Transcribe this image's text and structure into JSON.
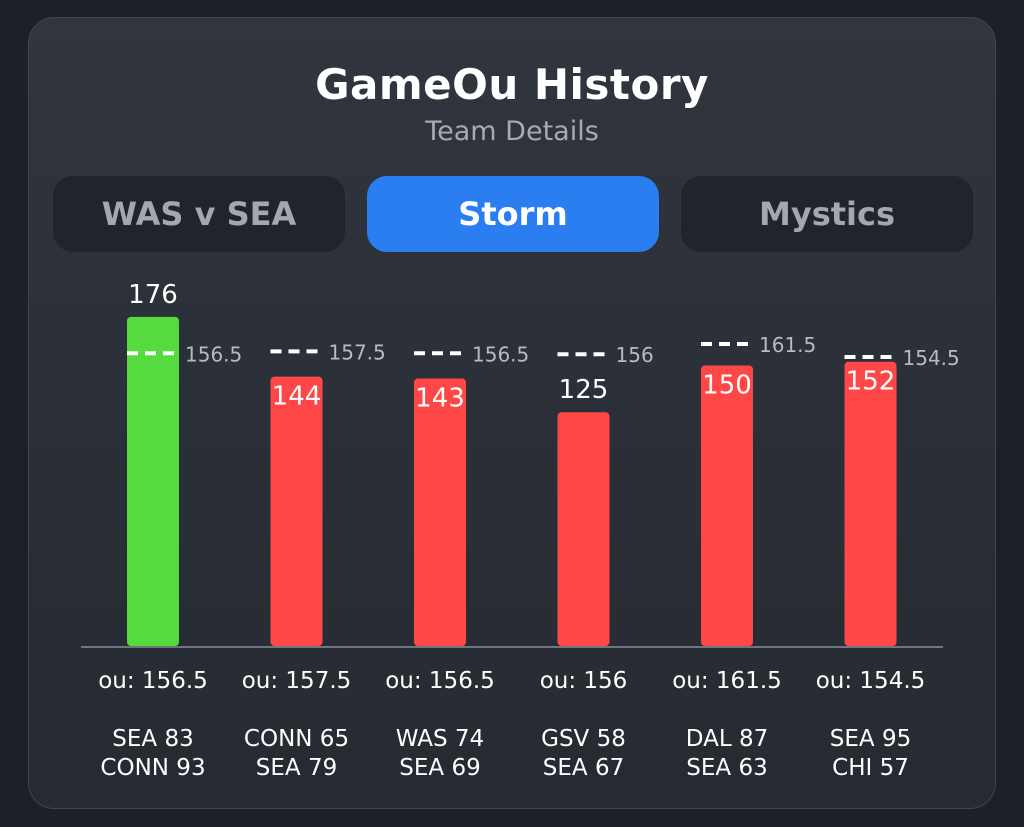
{
  "header": {
    "title": "GameOu History",
    "subtitle": "Team Details"
  },
  "tabs": [
    {
      "label": "WAS v SEA",
      "active": false
    },
    {
      "label": "Storm",
      "active": true
    },
    {
      "label": "Mystics",
      "active": false
    }
  ],
  "colors": {
    "over": "#55db3e",
    "under": "#ff4747",
    "line": "#ffffff",
    "axis": "#6f7682"
  },
  "chart_data": {
    "type": "bar",
    "title": "GameOu History",
    "ylim": [
      0,
      185
    ],
    "bars": [
      {
        "total": 176,
        "total_label": "176",
        "line": 156.5,
        "line_label": "156.5",
        "ou_label": "ou: 156.5",
        "game": [
          "SEA 83",
          "CONN 93"
        ],
        "result": "over",
        "label_inside": false
      },
      {
        "total": 144,
        "total_label": "144",
        "line": 157.5,
        "line_label": "157.5",
        "ou_label": "ou: 157.5",
        "game": [
          "CONN 65",
          "SEA 79"
        ],
        "result": "under",
        "label_inside": true
      },
      {
        "total": 143,
        "total_label": "143",
        "line": 156.5,
        "line_label": "156.5",
        "ou_label": "ou: 156.5",
        "game": [
          "WAS 74",
          "SEA 69"
        ],
        "result": "under",
        "label_inside": true
      },
      {
        "total": 125,
        "total_label": "125",
        "line": 156,
        "line_label": "156",
        "ou_label": "ou: 156",
        "game": [
          "GSV 58",
          "SEA 67"
        ],
        "result": "under",
        "label_inside": false
      },
      {
        "total": 150,
        "total_label": "150",
        "line": 161.5,
        "line_label": "161.5",
        "ou_label": "ou: 161.5",
        "game": [
          "DAL 87",
          "SEA 63"
        ],
        "result": "under",
        "label_inside": true
      },
      {
        "total": 152,
        "total_label": "152",
        "line": 154.5,
        "line_label": "154.5",
        "ou_label": "ou: 154.5",
        "game": [
          "SEA 95",
          "CHI 57"
        ],
        "result": "under",
        "label_inside": true
      }
    ]
  }
}
